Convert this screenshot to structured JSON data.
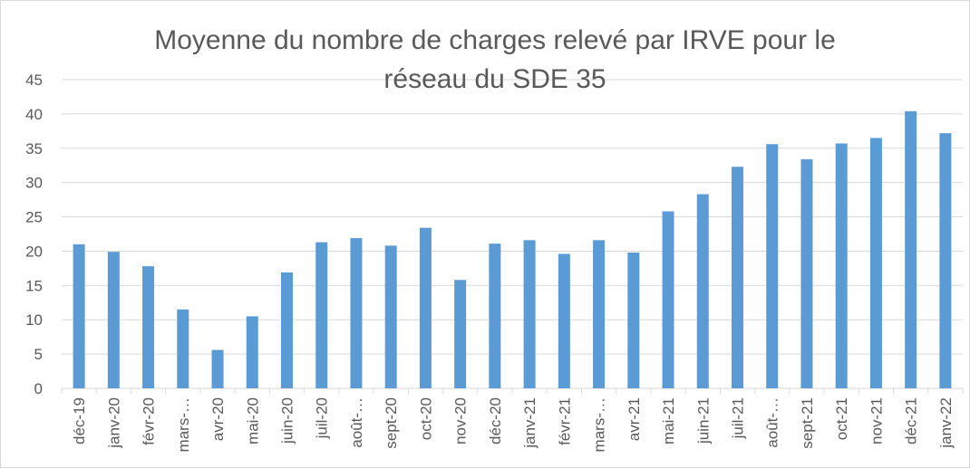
{
  "chart_data": {
    "type": "bar",
    "title": "Moyenne du nombre de charges relevé par IRVE pour le réseau du SDE 35",
    "categories": [
      "déc-19",
      "janv-20",
      "févr-20",
      "mars-…",
      "avr-20",
      "mai-20",
      "juin-20",
      "juil-20",
      "août-…",
      "sept-20",
      "oct-20",
      "nov-20",
      "déc-20",
      "janv-21",
      "févr-21",
      "mars-…",
      "avr-21",
      "mai-21",
      "juin-21",
      "juil-21",
      "août-…",
      "sept-21",
      "oct-21",
      "nov-21",
      "déc-21",
      "janv-22"
    ],
    "values": [
      21.0,
      19.9,
      17.8,
      11.5,
      5.6,
      10.5,
      16.9,
      21.3,
      21.9,
      20.8,
      23.4,
      15.8,
      21.1,
      21.6,
      19.6,
      21.6,
      19.8,
      25.8,
      28.3,
      32.3,
      35.6,
      33.4,
      35.7,
      36.5,
      40.4,
      37.2
    ],
    "color": "#5b9bd5",
    "ylim": [
      0,
      45
    ],
    "yticks": [
      0,
      5,
      10,
      15,
      20,
      25,
      30,
      35,
      40,
      45
    ],
    "grid": true
  }
}
